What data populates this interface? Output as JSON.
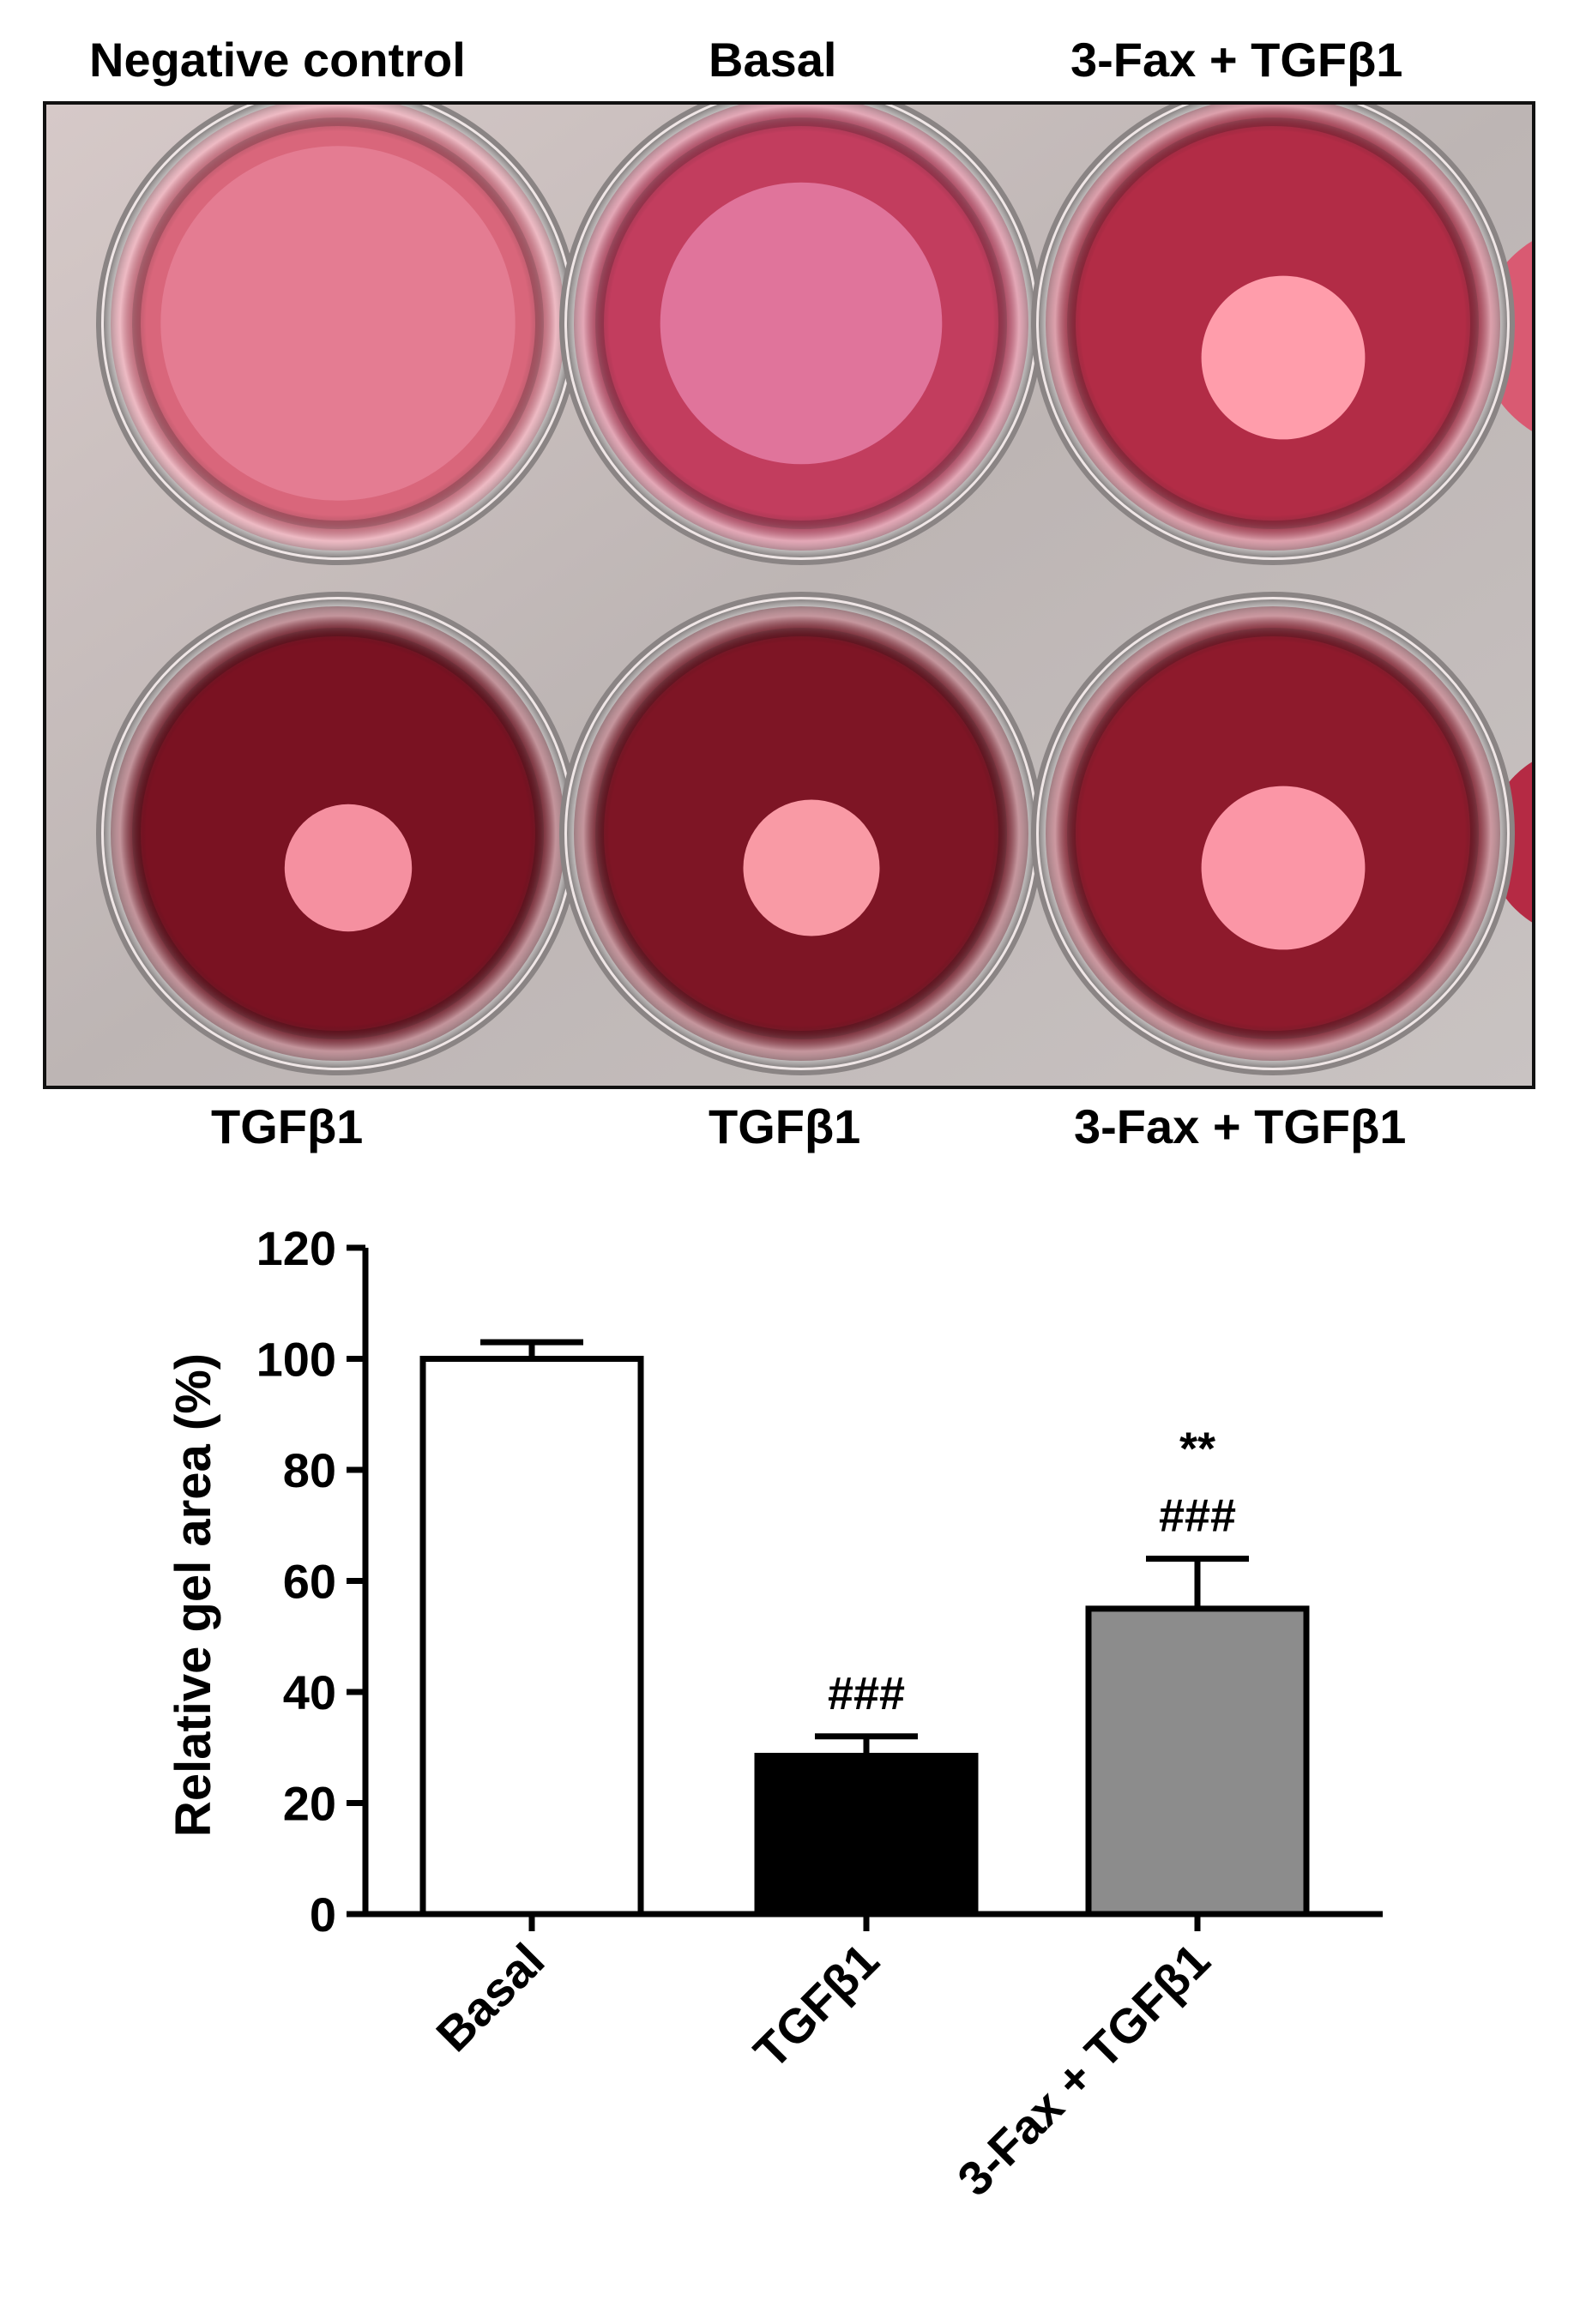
{
  "photo": {
    "labels": {
      "top_left": "Negative control",
      "top_center": "Basal",
      "top_right": "3-Fax + TGFβ1",
      "bottom_left": "TGFβ1",
      "bottom_center": "TGFβ1",
      "bottom_right": "3-Fax + TGFβ1"
    },
    "wells": [
      {
        "row": "top",
        "col": 0,
        "gel_size": 0.78,
        "colors": {
          "medium": "#d9667b",
          "gel": "#e47c92"
        }
      },
      {
        "row": "top",
        "col": 1,
        "gel_size": 0.62,
        "colors": {
          "medium": "#c23d5e",
          "gel": "#e0749b"
        }
      },
      {
        "row": "top",
        "col": 2,
        "gel_size": 0.36,
        "colors": {
          "medium": "#b22c46",
          "gel": "#ff9dab"
        }
      },
      {
        "row": "bottom",
        "col": 0,
        "gel_size": 0.28,
        "colors": {
          "medium": "#7a1222",
          "gel": "#f590a0"
        }
      },
      {
        "row": "bottom",
        "col": 1,
        "gel_size": 0.3,
        "colors": {
          "medium": "#7e1525",
          "gel": "#f99aa5"
        }
      },
      {
        "row": "bottom",
        "col": 2,
        "gel_size": 0.36,
        "colors": {
          "medium": "#8e1a2c",
          "gel": "#fb96a6"
        }
      }
    ]
  },
  "chart_data": {
    "type": "bar",
    "categories": [
      "Basal",
      "TGFβ1",
      "3-Fax + TGFβ1"
    ],
    "values": [
      100,
      28.5,
      55
    ],
    "errors": [
      3,
      3.5,
      9
    ],
    "colors": [
      "#ffffff",
      "#000000",
      "#8c8c8c"
    ],
    "annotations": [
      {
        "category": "TGFβ1",
        "lines": [
          "###"
        ]
      },
      {
        "category": "3-Fax + TGFβ1",
        "lines": [
          "**",
          "###"
        ]
      }
    ],
    "ylabel": "Relative gel area (%)",
    "ylim": [
      0,
      120
    ],
    "yticks": [
      0,
      20,
      40,
      60,
      80,
      100,
      120
    ],
    "grid": false
  }
}
